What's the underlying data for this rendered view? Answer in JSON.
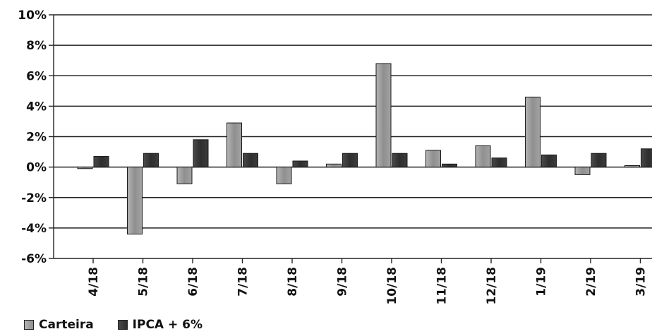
{
  "chart_data": {
    "type": "bar",
    "title": "",
    "xlabel": "",
    "ylabel": "",
    "categories": [
      "4/18",
      "5/18",
      "6/18",
      "7/18",
      "8/18",
      "9/18",
      "10/18",
      "11/18",
      "12/18",
      "1/19",
      "2/19",
      "3/19"
    ],
    "series": [
      {
        "name": "Carteira",
        "color": "#8c8c8c",
        "values": [
          -0.1,
          -4.4,
          -1.1,
          2.9,
          -1.1,
          0.2,
          6.8,
          1.1,
          1.4,
          4.6,
          -0.5,
          0.1
        ]
      },
      {
        "name": "IPCA + 6%",
        "color": "#3a3a3a",
        "values": [
          0.7,
          0.9,
          1.8,
          0.9,
          0.4,
          0.9,
          0.9,
          0.2,
          0.6,
          0.8,
          0.9,
          1.2
        ]
      }
    ],
    "ylim": [
      -6,
      10
    ],
    "yticks": [
      "10%",
      "8%",
      "6%",
      "4%",
      "2%",
      "0%",
      "-2%",
      "-4%",
      "-6%"
    ],
    "grid": true,
    "legend_position": "bottom-left"
  }
}
